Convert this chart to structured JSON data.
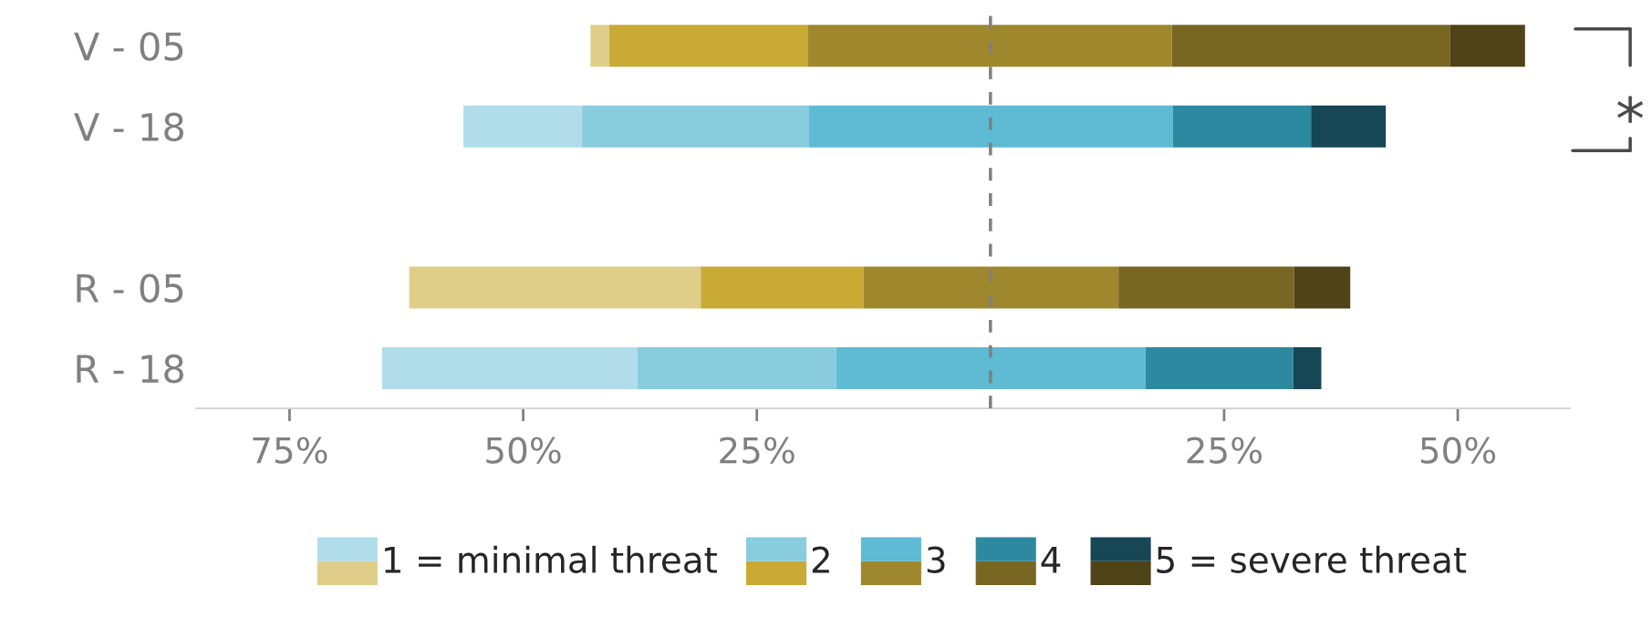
{
  "chart_data": {
    "type": "bar",
    "orientation": "horizontal",
    "categories": [
      "V - 05",
      "V - 18",
      null,
      "R - 05",
      "R - 18"
    ],
    "series": [
      {
        "name": "1 = minimal threat",
        "values": [
          2.0,
          12.7,
          null,
          31.2,
          27.3
        ],
        "base": [
          -42.8,
          -56.4,
          null,
          -62.2,
          -65.1
        ],
        "colors": [
          "#dfcd8a",
          "#b0dde9",
          null,
          "#dfcd8a",
          "#b0dde9"
        ]
      },
      {
        "name": "2",
        "values": [
          21.3,
          24.3,
          null,
          17.4,
          21.3
        ],
        "base": [
          -40.8,
          -43.7,
          null,
          -31.0,
          -37.8
        ],
        "colors": [
          "#c8aa35",
          "#89ccdd",
          null,
          "#c8aa35",
          "#89ccdd"
        ]
      },
      {
        "name": "3",
        "values": [
          38.9,
          38.9,
          null,
          27.3,
          33.1
        ],
        "base": [
          -19.5,
          -19.4,
          null,
          -13.6,
          -16.5
        ],
        "colors": [
          "#9f872d",
          "#5fbad3",
          null,
          "#9f872d",
          "#5fbad3"
        ]
      },
      {
        "name": "4",
        "values": [
          29.8,
          14.8,
          null,
          18.8,
          15.8
        ],
        "base": [
          19.4,
          19.5,
          null,
          13.7,
          16.6
        ],
        "colors": [
          "#786623",
          "#2d89a0",
          null,
          "#786623",
          "#2d89a0"
        ]
      },
      {
        "name": "5 = severe threat",
        "values": [
          8.0,
          8.0,
          null,
          6.0,
          3.0
        ],
        "base": [
          49.2,
          34.3,
          null,
          32.5,
          32.4
        ],
        "colors": [
          "#4f4318",
          "#174655",
          null,
          "#4f4318",
          "#174655"
        ]
      }
    ],
    "xlim": [
      -85,
      62
    ],
    "xticks": [
      {
        "value": -75,
        "label": "75%"
      },
      {
        "value": -50,
        "label": "50%"
      },
      {
        "value": -25,
        "label": "25%"
      },
      {
        "value": 25,
        "label": "25%"
      },
      {
        "value": 50,
        "label": "50%"
      }
    ],
    "ref_lines": [
      {
        "axis": "x",
        "value": 0,
        "color": "#808080",
        "line_style": "dashed"
      }
    ],
    "annotations": [
      "*"
    ],
    "legend": "bottom"
  }
}
